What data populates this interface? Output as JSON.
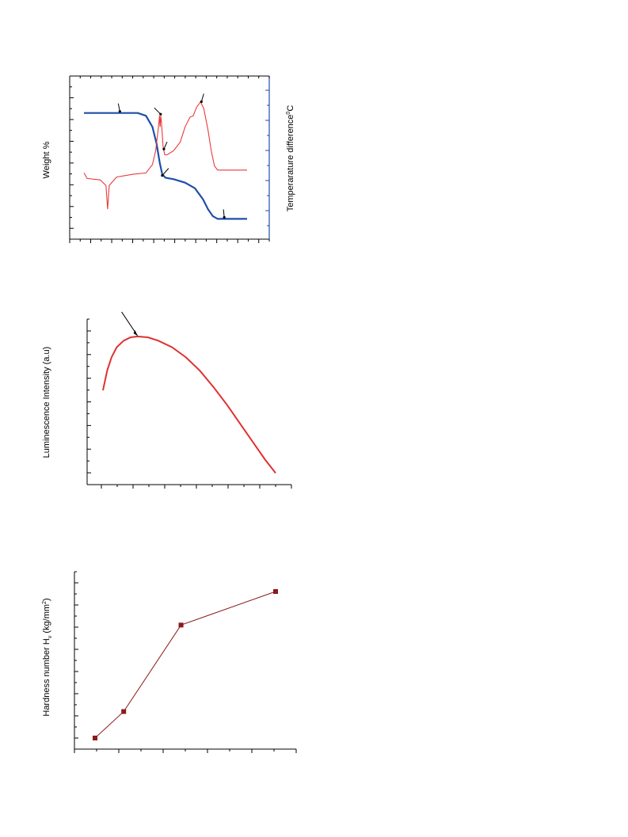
{
  "chart_data": [
    {
      "type": "line",
      "title": "",
      "axis_labels": {
        "left": "Weight %",
        "right": "Temperarature difference",
        "right_unit_sup": "0",
        "right_unit": "C"
      },
      "colors": {
        "left_axis": "#e83a3a",
        "right_axis": "#1f4fa8",
        "frame": "#000000"
      },
      "grid": false,
      "series": [
        {
          "color": "#1f4fa8",
          "values": [
            [
              0.0,
              0.82
            ],
            [
              0.22,
              0.82
            ],
            [
              0.33,
              0.82
            ],
            [
              0.38,
              0.8
            ],
            [
              0.42,
              0.72
            ],
            [
              0.445,
              0.6
            ],
            [
              0.465,
              0.46
            ],
            [
              0.48,
              0.38
            ],
            [
              0.5,
              0.355
            ],
            [
              0.55,
              0.345
            ],
            [
              0.62,
              0.32
            ],
            [
              0.68,
              0.28
            ],
            [
              0.73,
              0.2
            ],
            [
              0.76,
              0.13
            ],
            [
              0.79,
              0.08
            ],
            [
              0.82,
              0.06
            ],
            [
              1.0,
              0.06
            ]
          ]
        },
        {
          "color": "#e83a3a",
          "values": [
            [
              0.0,
              0.39
            ],
            [
              0.02,
              0.35
            ],
            [
              0.1,
              0.34
            ],
            [
              0.135,
              0.3
            ],
            [
              0.145,
              0.13
            ],
            [
              0.155,
              0.3
            ],
            [
              0.2,
              0.36
            ],
            [
              0.3,
              0.38
            ],
            [
              0.38,
              0.39
            ],
            [
              0.42,
              0.45
            ],
            [
              0.44,
              0.55
            ],
            [
              0.455,
              0.7
            ],
            [
              0.46,
              0.76
            ],
            [
              0.463,
              0.8
            ],
            [
              0.467,
              0.72
            ],
            [
              0.471,
              0.8
            ],
            [
              0.475,
              0.76
            ],
            [
              0.485,
              0.58
            ],
            [
              0.495,
              0.52
            ],
            [
              0.51,
              0.52
            ],
            [
              0.55,
              0.55
            ],
            [
              0.59,
              0.61
            ],
            [
              0.62,
              0.72
            ],
            [
              0.65,
              0.79
            ],
            [
              0.67,
              0.8
            ],
            [
              0.69,
              0.86
            ],
            [
              0.715,
              0.9
            ],
            [
              0.735,
              0.85
            ],
            [
              0.76,
              0.7
            ],
            [
              0.78,
              0.55
            ],
            [
              0.8,
              0.44
            ],
            [
              0.82,
              0.41
            ],
            [
              0.86,
              0.41
            ],
            [
              1.0,
              0.41
            ]
          ]
        }
      ],
      "annotations": [
        {
          "type": "arrow",
          "x": 0.22,
          "y": 0.82
        },
        {
          "type": "arrow",
          "x": 0.47,
          "y": 0.8
        },
        {
          "type": "arrow",
          "x": 0.49,
          "y": 0.55
        },
        {
          "type": "arrow",
          "x": 0.48,
          "y": 0.36
        },
        {
          "type": "arrow",
          "x": 0.72,
          "y": 0.89
        },
        {
          "type": "arrow",
          "x": 0.86,
          "y": 0.06
        }
      ]
    },
    {
      "type": "line",
      "title": "",
      "axis_labels": {
        "left": "Luminescence Intensity (a.u)"
      },
      "colors": {
        "series": "#e03030",
        "frame": "#000000"
      },
      "grid": false,
      "series": [
        {
          "color": "#e03030",
          "values": [
            [
              0.0,
              0.57
            ],
            [
              0.025,
              0.69
            ],
            [
              0.05,
              0.77
            ],
            [
              0.08,
              0.83
            ],
            [
              0.12,
              0.87
            ],
            [
              0.16,
              0.89
            ],
            [
              0.2,
              0.895
            ],
            [
              0.26,
              0.89
            ],
            [
              0.32,
              0.87
            ],
            [
              0.4,
              0.83
            ],
            [
              0.48,
              0.77
            ],
            [
              0.56,
              0.69
            ],
            [
              0.64,
              0.59
            ],
            [
              0.72,
              0.48
            ],
            [
              0.8,
              0.36
            ],
            [
              0.88,
              0.24
            ],
            [
              0.94,
              0.15
            ],
            [
              1.0,
              0.07
            ]
          ]
        }
      ],
      "annotations": [
        {
          "type": "arrow",
          "x": 0.2,
          "y": 0.895
        }
      ]
    },
    {
      "type": "line",
      "title": "",
      "axis_labels": {
        "left_prefix": "Hardness number H",
        "left_sub": "v",
        "left_suffix": " (kg/mm",
        "left_sup": "2",
        "left_end": ")"
      },
      "colors": {
        "series": "#8b1a1a",
        "marker": "#8b1a1a",
        "frame": "#000000"
      },
      "grid": false,
      "series": [
        {
          "color": "#8b1a1a",
          "marker": "square",
          "values": [
            [
              1,
              0.05
            ],
            [
              2,
              0.2
            ],
            [
              4,
              0.69
            ],
            [
              7.3,
              0.88
            ]
          ]
        }
      ]
    }
  ]
}
